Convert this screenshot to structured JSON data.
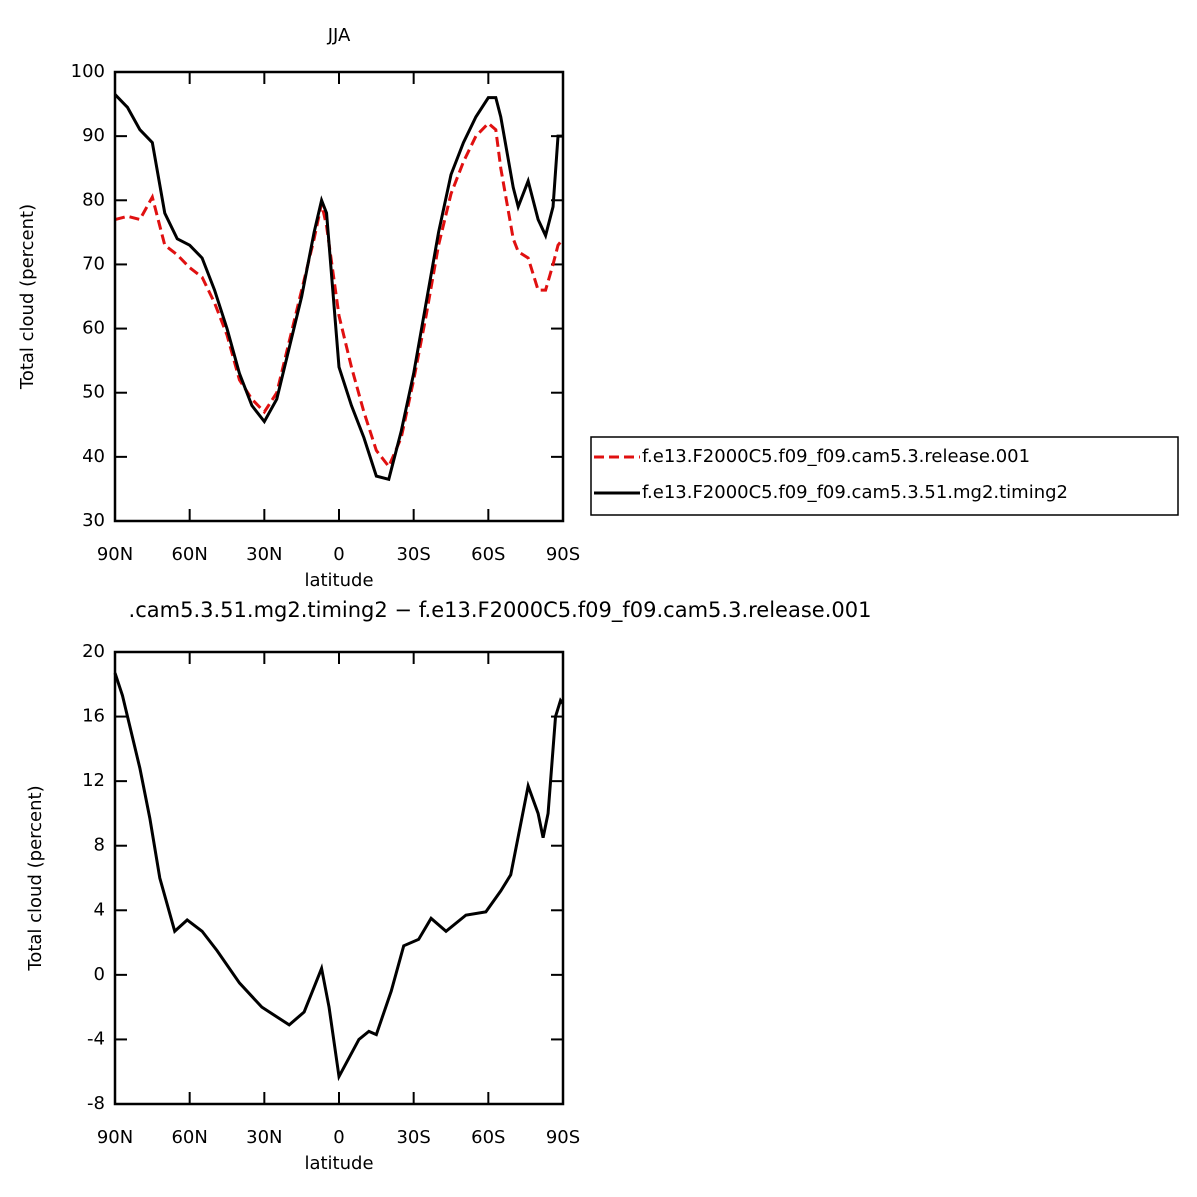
{
  "chart_data": [
    {
      "type": "line",
      "title": "JJA",
      "xlabel": "latitude",
      "ylabel": "Total cloud (percent)",
      "x": [
        90,
        85,
        80,
        75,
        70,
        65,
        60,
        55,
        50,
        45,
        40,
        35,
        30,
        25,
        20,
        15,
        10,
        7,
        5,
        0,
        -5,
        -10,
        -15,
        -20,
        -25,
        -30,
        -35,
        -40,
        -45,
        -50,
        -55,
        -60,
        -63,
        -65,
        -70,
        -72,
        -76,
        -80,
        -83,
        -86,
        -88,
        -90
      ],
      "series": [
        {
          "name": "f.e13.F2000C5.f09_f09.cam5.3.release.001",
          "color": "#e01010",
          "linestyle": "dashed",
          "values": [
            77,
            77.5,
            77,
            80.5,
            73,
            71.5,
            69.5,
            68,
            64,
            59,
            52,
            49,
            47,
            50,
            58,
            66,
            74,
            79.5,
            76,
            62,
            54,
            47,
            41,
            38.5,
            43,
            52,
            62,
            73,
            81,
            86,
            90,
            92,
            91,
            85,
            74,
            72,
            71,
            66,
            66,
            70,
            73,
            74
          ]
        },
        {
          "name": "f.e13.F2000C5.f09_f09.cam5.3.51.mg2.timing2",
          "color": "#000000",
          "linestyle": "solid",
          "values": [
            96.5,
            94.5,
            91,
            89,
            78,
            74,
            73,
            71,
            66,
            60,
            53,
            48,
            45.5,
            49,
            57,
            65,
            75,
            80,
            78,
            54,
            48,
            43,
            37,
            36.5,
            44,
            53,
            64,
            75,
            84,
            89,
            93,
            96,
            96,
            93,
            82,
            79,
            83,
            77,
            74.5,
            79,
            90,
            90
          ]
        }
      ],
      "xlim": [
        90,
        -90
      ],
      "xticks": [
        {
          "value": 90,
          "label": "90N"
        },
        {
          "value": 60,
          "label": "60N"
        },
        {
          "value": 30,
          "label": "30N"
        },
        0,
        {
          "value": -30,
          "label": "30S"
        },
        {
          "value": -60,
          "label": "60S"
        },
        {
          "value": -90,
          "label": "90S"
        }
      ],
      "ylim": [
        30,
        100
      ],
      "yticks": [
        30,
        40,
        50,
        60,
        70,
        80,
        90,
        100
      ],
      "legend": "right"
    },
    {
      "type": "line",
      "title": ".cam5.3.51.mg2.timing2 − f.e13.F2000C5.f09_f09.cam5.3.release.001",
      "xlabel": "latitude",
      "ylabel": "Total cloud (percent)",
      "x": [
        90,
        87,
        80,
        76,
        72,
        66,
        61,
        55,
        49,
        40,
        31,
        20,
        14,
        7,
        4,
        0,
        -8,
        -12,
        -15,
        -21,
        -26,
        -32,
        -37,
        -43,
        -51,
        -59,
        -65,
        -69,
        -76,
        -80,
        -82,
        -84,
        -87,
        -89,
        -90
      ],
      "series": [
        {
          "color": "#000000",
          "linestyle": "solid",
          "values": [
            18.7,
            17.3,
            12.8,
            9.7,
            6,
            2.7,
            3.4,
            2.7,
            1.5,
            -0.5,
            -2,
            -3.1,
            -2.3,
            0.4,
            -2,
            -6.3,
            -4,
            -3.5,
            -3.7,
            -1,
            1.8,
            2.2,
            3.5,
            2.7,
            3.7,
            3.9,
            5.2,
            6.2,
            11.7,
            10,
            8.5,
            10,
            16,
            17,
            16.8
          ]
        }
      ],
      "xlim": [
        90,
        -90
      ],
      "xticks": [
        {
          "value": 90,
          "label": "90N"
        },
        {
          "value": 60,
          "label": "60N"
        },
        {
          "value": 30,
          "label": "30N"
        },
        0,
        {
          "value": -30,
          "label": "30S"
        },
        {
          "value": -60,
          "label": "60S"
        },
        {
          "value": -90,
          "label": "90S"
        }
      ],
      "ylim": [
        -8,
        20
      ],
      "yticks": [
        -8,
        -4,
        0,
        4,
        8,
        12,
        16,
        20
      ]
    }
  ]
}
